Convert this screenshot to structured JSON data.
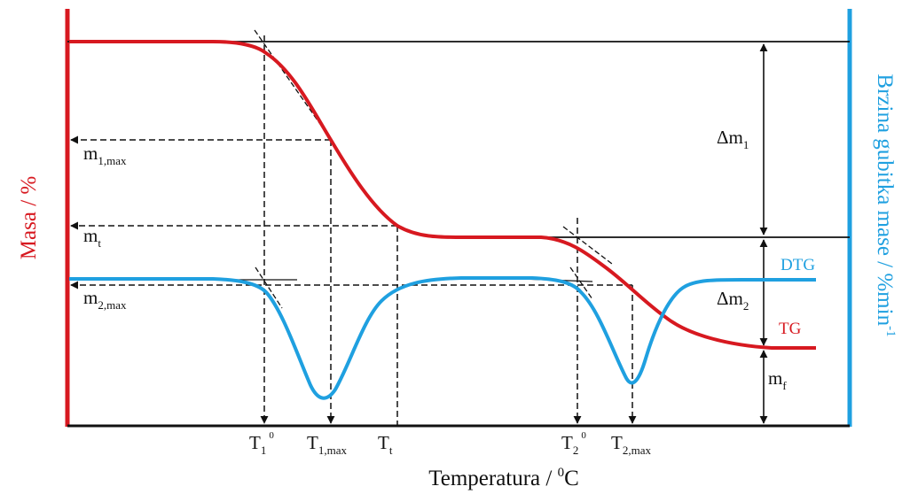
{
  "colors": {
    "tg": "#d71920",
    "dtg": "#1fa0e0",
    "ink": "#111111"
  },
  "axes": {
    "left_title": "Masa / %",
    "right_title_main": "Brzina gubitka mase / %min",
    "right_title_sup": "-1",
    "x_title_main": "Temperatura / ",
    "x_title_sup": "0",
    "x_title_unit": "C"
  },
  "curves": {
    "tg_label": "TG",
    "dtg_label": "DTG"
  },
  "mass_labels": {
    "m1max_base": "m",
    "m1max_sub": "1,max",
    "mt_base": "m",
    "mt_sub": "t",
    "m2max_base": "m",
    "m2max_sub": "2,max",
    "mf_base": "m",
    "mf_sub": "f"
  },
  "delta_labels": {
    "dm1_base": "Δm",
    "dm1_sub": "1",
    "dm2_base": "Δm",
    "dm2_sub": "2"
  },
  "temp_labels": {
    "t1_0_base": "T",
    "t1_0_sub": "1",
    "t1_0_sup": "0",
    "t1max_base": "T",
    "t1max_sub": "1,max",
    "tt_base": "T",
    "tt_sub": "t",
    "t2_0_base": "T",
    "t2_0_sub": "2",
    "t2_0_sup": "0",
    "t2max_base": "T",
    "t2max_sub": "2,max"
  }
}
